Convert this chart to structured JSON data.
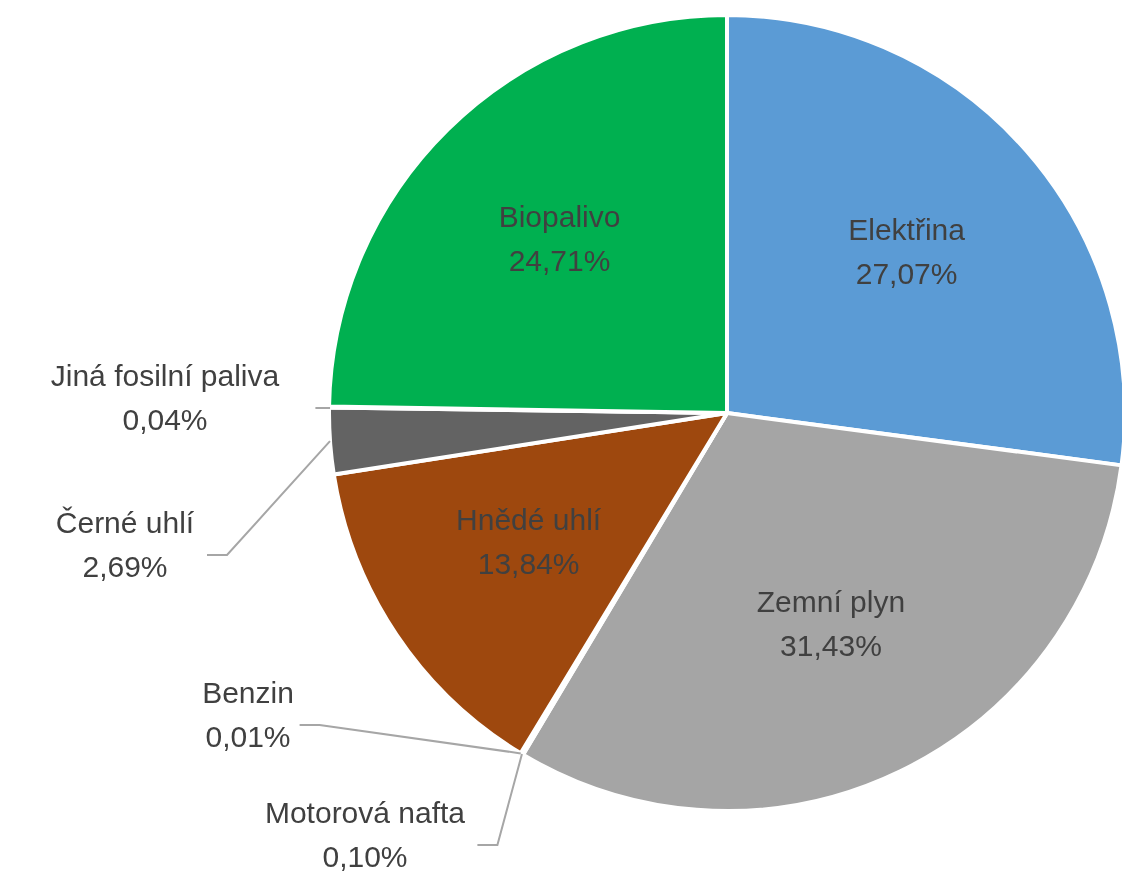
{
  "chart_data": {
    "type": "pie",
    "categories": [
      "Elektřina",
      "Zemní plyn",
      "Motorová nafta",
      "Benzin",
      "Hnědé uhlí",
      "Černé uhlí",
      "Jiná fosilní paliva",
      "Biopalivo"
    ],
    "values": [
      27.07,
      31.43,
      0.1,
      0.01,
      13.84,
      2.69,
      0.04,
      24.71
    ],
    "colors": [
      "#5b9bd5",
      "#a5a5a5",
      "#ffc000",
      "#4472c4",
      "#9e480e",
      "#636363",
      "#264478",
      "#00b050"
    ],
    "value_labels": [
      "27,07%",
      "31,43%",
      "0,10%",
      "0,01%",
      "13,84%",
      "2,69%",
      "0,04%",
      "24,71%"
    ]
  }
}
